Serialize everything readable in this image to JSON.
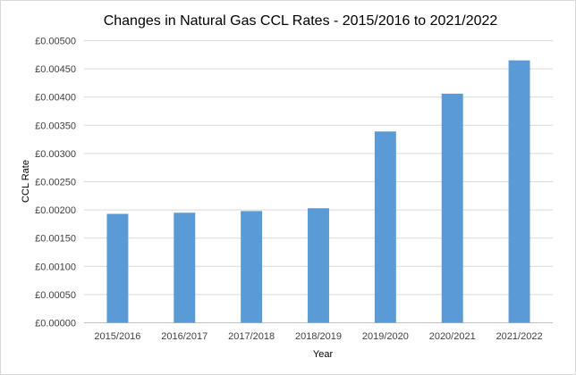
{
  "chart_data": {
    "type": "bar",
    "title": "Changes in Natural Gas CCL Rates  - 2015/2016 to 2021/2022",
    "xlabel": "Year",
    "ylabel": "CCL Rate",
    "categories": [
      "2015/2016",
      "2016/2017",
      "2017/2018",
      "2018/2019",
      "2019/2020",
      "2020/2021",
      "2021/2022"
    ],
    "values": [
      0.00193,
      0.00195,
      0.00198,
      0.00203,
      0.00339,
      0.00406,
      0.00465
    ],
    "ylim": [
      0,
      0.005
    ],
    "yticks": [
      "£0.00000",
      "£0.00050",
      "£0.00100",
      "£0.00150",
      "£0.00200",
      "£0.00250",
      "£0.00300",
      "£0.00350",
      "£0.00400",
      "£0.00450",
      "£0.00500"
    ],
    "grid": true,
    "legend": "none",
    "bar_color": "#5b9bd5"
  }
}
